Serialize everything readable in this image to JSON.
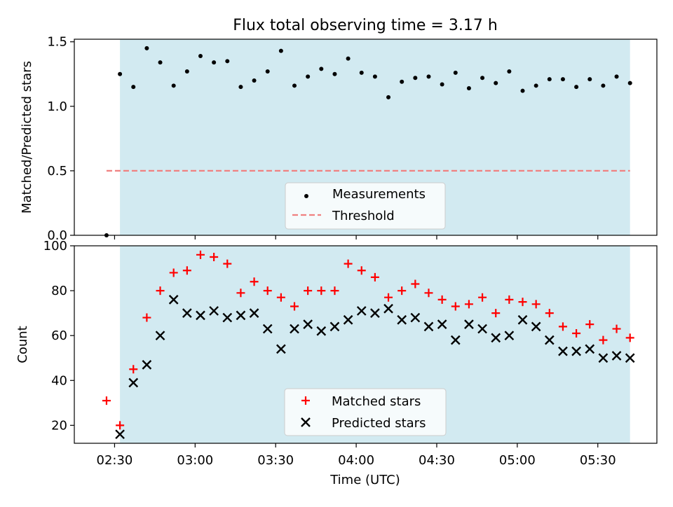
{
  "title": "Flux total observing time = 3.17 h",
  "colors": {
    "shade": "#add8e6",
    "threshold": "#f08080",
    "matched": "#ff0000",
    "predicted": "#000000",
    "measurements": "#000000"
  },
  "chart_data": [
    {
      "type": "scatter",
      "ylabel": "Matched/Predicted stars",
      "ylim": [
        0,
        1.52
      ],
      "yticks": [
        "0.0",
        "0.5",
        "1.0",
        "1.5"
      ],
      "ytick_values": [
        0,
        0.5,
        1.0,
        1.5
      ],
      "shaded_span": [
        "02:32",
        "05:42"
      ],
      "legend": {
        "placement": "lower center",
        "entries": [
          "Measurements",
          "Threshold"
        ]
      },
      "threshold": {
        "value": 0.5,
        "x_range": [
          "02:27",
          "05:42"
        ]
      },
      "series": [
        {
          "name": "Measurements",
          "marker": "dot",
          "x": [
            "02:27",
            "02:32",
            "02:37",
            "02:42",
            "02:47",
            "02:52",
            "02:57",
            "03:02",
            "03:07",
            "03:12",
            "03:17",
            "03:22",
            "03:27",
            "03:32",
            "03:37",
            "03:42",
            "03:47",
            "03:52",
            "03:57",
            "04:02",
            "04:07",
            "04:12",
            "04:17",
            "04:22",
            "04:27",
            "04:32",
            "04:37",
            "04:42",
            "04:47",
            "04:52",
            "04:57",
            "05:02",
            "05:07",
            "05:12",
            "05:17",
            "05:22",
            "05:27",
            "05:32",
            "05:37",
            "05:42"
          ],
          "y": [
            0.0,
            1.25,
            1.15,
            1.45,
            1.34,
            1.16,
            1.27,
            1.39,
            1.34,
            1.35,
            1.15,
            1.2,
            1.27,
            1.43,
            1.16,
            1.23,
            1.29,
            1.25,
            1.37,
            1.26,
            1.23,
            1.07,
            1.19,
            1.22,
            1.23,
            1.17,
            1.26,
            1.14,
            1.22,
            1.18,
            1.27,
            1.12,
            1.16,
            1.21,
            1.21,
            1.15,
            1.21,
            1.16,
            1.23,
            1.18
          ]
        }
      ]
    },
    {
      "type": "scatter",
      "xlabel": "Time (UTC)",
      "ylabel": "Count",
      "ylim": [
        12,
        100
      ],
      "yticks": [
        "20",
        "40",
        "60",
        "80",
        "100"
      ],
      "ytick_values": [
        20,
        40,
        60,
        80,
        100
      ],
      "xticks": [
        "02:30",
        "03:00",
        "03:30",
        "04:00",
        "04:30",
        "05:00",
        "05:30"
      ],
      "xtick_values": [
        "02:30",
        "03:00",
        "03:30",
        "04:00",
        "04:30",
        "05:00",
        "05:30"
      ],
      "xlim": [
        "02:15",
        "05:52"
      ],
      "shaded_span": [
        "02:32",
        "05:42"
      ],
      "legend": {
        "placement": "lower center",
        "entries": [
          "Matched stars",
          "Predicted stars"
        ]
      },
      "x": [
        "02:27",
        "02:32",
        "02:37",
        "02:42",
        "02:47",
        "02:52",
        "02:57",
        "03:02",
        "03:07",
        "03:12",
        "03:17",
        "03:22",
        "03:27",
        "03:32",
        "03:37",
        "03:42",
        "03:47",
        "03:52",
        "03:57",
        "04:02",
        "04:07",
        "04:12",
        "04:17",
        "04:22",
        "04:27",
        "04:32",
        "04:37",
        "04:42",
        "04:47",
        "04:52",
        "04:57",
        "05:02",
        "05:07",
        "05:12",
        "05:17",
        "05:22",
        "05:27",
        "05:32",
        "05:37",
        "05:42"
      ],
      "series": [
        {
          "name": "Matched stars",
          "marker": "plus",
          "values": [
            31,
            20,
            45,
            68,
            80,
            88,
            89,
            96,
            95,
            92,
            79,
            84,
            80,
            77,
            73,
            80,
            80,
            80,
            92,
            89,
            86,
            77,
            80,
            83,
            79,
            76,
            73,
            74,
            77,
            70,
            76,
            75,
            74,
            70,
            64,
            61,
            65,
            58,
            63,
            59
          ]
        },
        {
          "name": "Predicted stars",
          "marker": "x",
          "values": [
            null,
            16,
            39,
            47,
            60,
            76,
            70,
            69,
            71,
            68,
            69,
            70,
            63,
            54,
            63,
            65,
            62,
            64,
            67,
            71,
            70,
            72,
            67,
            68,
            64,
            65,
            58,
            65,
            63,
            59,
            60,
            67,
            64,
            58,
            53,
            53,
            54,
            50,
            51,
            50
          ]
        }
      ]
    }
  ]
}
